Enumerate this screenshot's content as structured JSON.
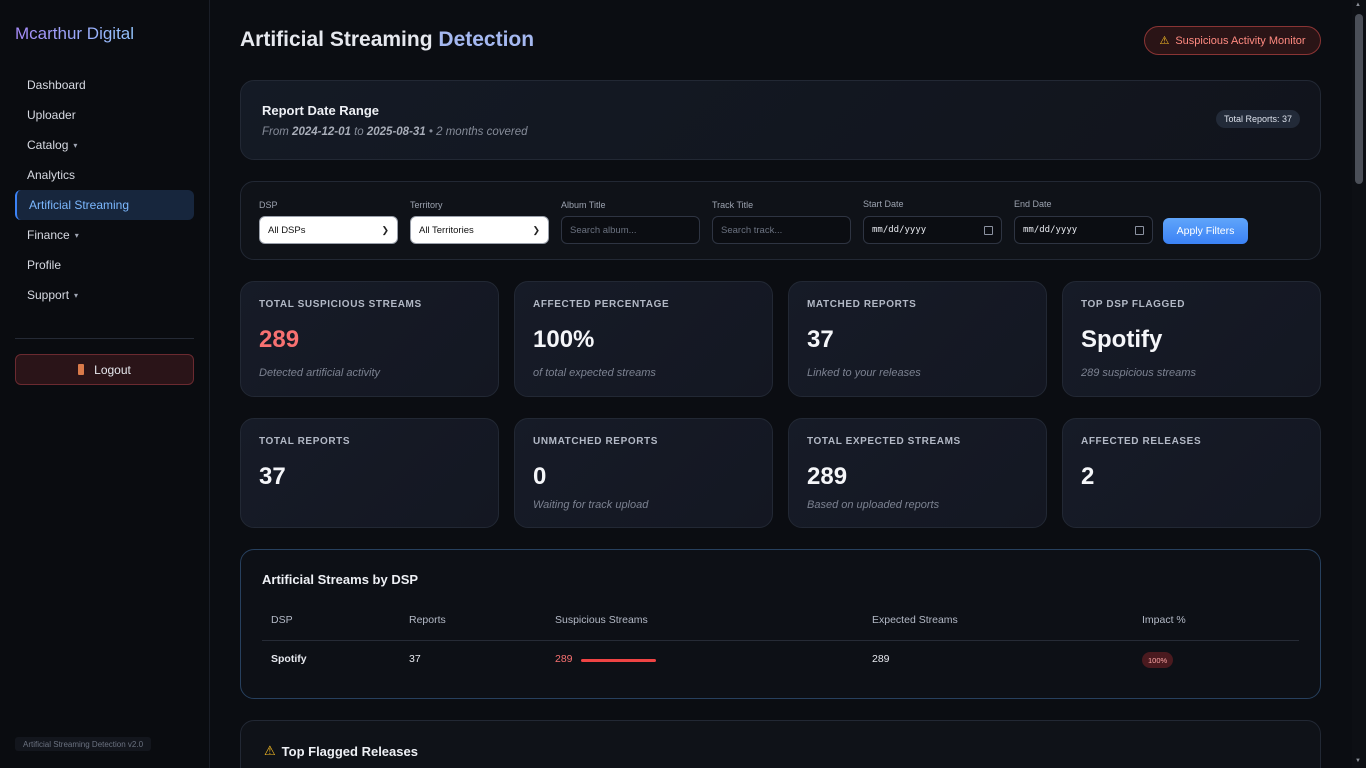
{
  "sidebar": {
    "brand": "Mcarthur Digital",
    "items": [
      {
        "label": "Dashboard"
      },
      {
        "label": "Uploader"
      },
      {
        "label": "Catalog",
        "caret": "▾"
      },
      {
        "label": "Analytics"
      },
      {
        "label": "Artificial Streaming"
      },
      {
        "label": "Finance",
        "caret": "▾"
      },
      {
        "label": "Profile"
      },
      {
        "label": "Support",
        "caret": "▾"
      }
    ],
    "logout_label": "Logout",
    "version": "Artificial Streaming Detection v2.0"
  },
  "header": {
    "title_main": "Artificial Streaming",
    "title_accent": "Detection",
    "badge_icon": "⚠",
    "badge_label": "Suspicious Activity Monitor"
  },
  "range": {
    "title": "Report Date Range",
    "from_label": "From",
    "start": "2024-12-01",
    "to_label": "to",
    "end": "2025-08-31",
    "covered": "• 2 months covered",
    "total_reports": "Total Reports: 37"
  },
  "filters": {
    "dsp_label": "DSP",
    "dsp_value": "All DSPs",
    "territory_label": "Territory",
    "territory_value": "All Territories",
    "album_label": "Album Title",
    "album_placeholder": "Search album...",
    "track_label": "Track Title",
    "track_placeholder": "Search track...",
    "start_label": "Start Date",
    "start_value": "mm/dd/yyyy",
    "end_label": "End Date",
    "end_value": "mm/dd/yyyy",
    "apply_label": "Apply Filters"
  },
  "stats": [
    {
      "label": "TOTAL SUSPICIOUS STREAMS",
      "value": "289",
      "sub": "Detected artificial activity"
    },
    {
      "label": "AFFECTED PERCENTAGE",
      "value": "100%",
      "sub": "of total expected streams"
    },
    {
      "label": "MATCHED REPORTS",
      "value": "37",
      "sub": "Linked to your releases"
    },
    {
      "label": "TOP DSP FLAGGED",
      "value": "Spotify",
      "sub": "289 suspicious streams"
    },
    {
      "label": "TOTAL REPORTS",
      "value": "37",
      "sub": ""
    },
    {
      "label": "UNMATCHED REPORTS",
      "value": "0",
      "sub": "Waiting for track upload"
    },
    {
      "label": "TOTAL EXPECTED STREAMS",
      "value": "289",
      "sub": "Based on uploaded reports"
    },
    {
      "label": "AFFECTED RELEASES",
      "value": "2",
      "sub": ""
    }
  ],
  "dsp_table": {
    "title": "Artificial Streams by DSP",
    "headers": [
      "DSP",
      "Reports",
      "Suspicious Streams",
      "Expected Streams",
      "Impact %"
    ],
    "rows": [
      {
        "dsp": "Spotify",
        "reports": "37",
        "suspicious": "289",
        "expected": "289",
        "impact": "100%",
        "impact_fraction": 1.0
      }
    ]
  },
  "flagged": {
    "icon": "⚠",
    "title": "Top Flagged Releases"
  },
  "colors": {
    "accent": "#3b82f6",
    "danger": "#f87171",
    "brand_gradient_start": "#a78bfa",
    "brand_gradient_end": "#93c5fd"
  }
}
